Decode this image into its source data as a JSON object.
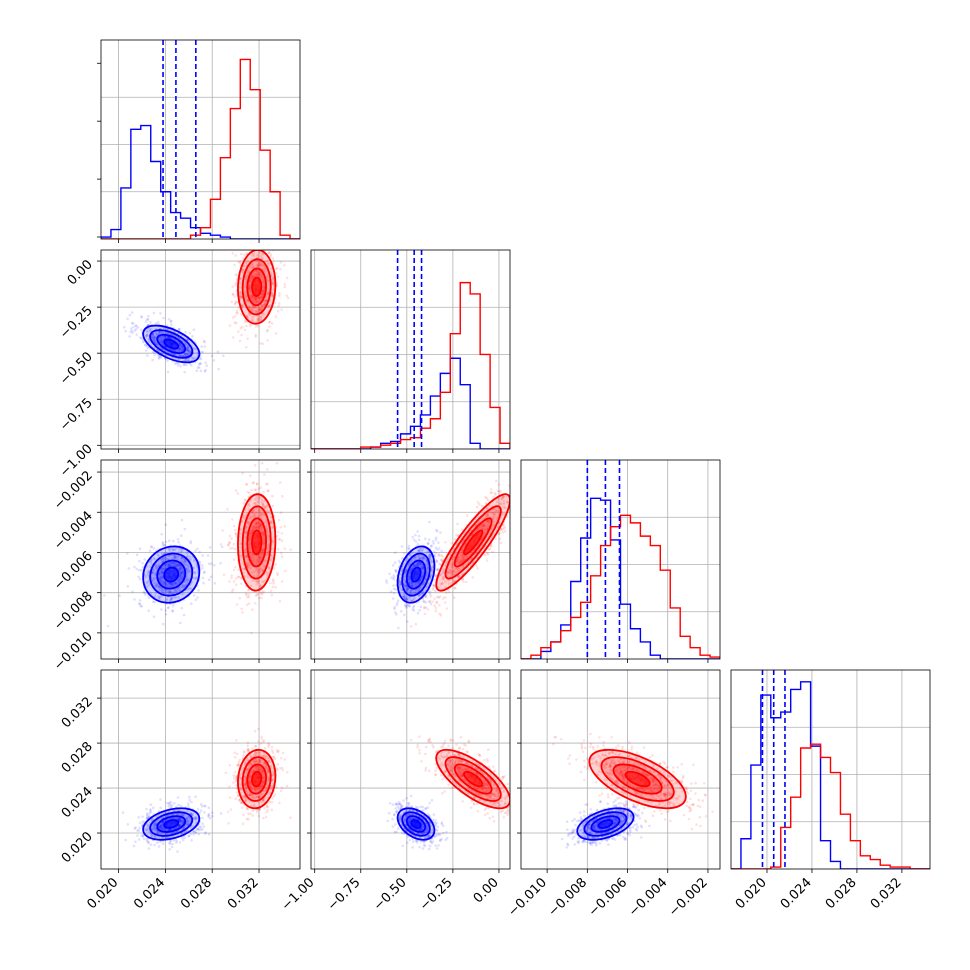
{
  "colors": {
    "blue": "#0000ff",
    "red": "#ff0000",
    "grid": "#b0b0b0",
    "axis": "#000000"
  },
  "chart_data": {
    "type": "corner",
    "grid": true,
    "parameters": [
      {
        "range": [
          0.0185,
          0.0355
        ],
        "ticks": [
          0.02,
          0.024,
          0.028,
          0.032
        ],
        "tick_labels": [
          "0.020",
          "0.024",
          "0.028",
          "0.032"
        ]
      },
      {
        "range": [
          -1.02,
          0.06
        ],
        "ticks": [
          -1.0,
          -0.75,
          -0.5,
          -0.25,
          0.0
        ],
        "tick_labels": [
          "−1.00",
          "−0.75",
          "−0.50",
          "−0.25",
          "0.00"
        ]
      },
      {
        "range": [
          -0.0113,
          -0.0014
        ],
        "ticks": [
          -0.01,
          -0.008,
          -0.006,
          -0.004,
          -0.002
        ],
        "tick_labels": [
          "−0.010",
          "−0.008",
          "−0.006",
          "−0.004",
          "−0.002"
        ]
      },
      {
        "range": [
          0.0168,
          0.0345
        ],
        "ticks": [
          0.02,
          0.024,
          0.028,
          0.032
        ],
        "tick_labels": [
          "0.020",
          "0.024",
          "0.028",
          "0.032"
        ]
      }
    ],
    "series": [
      {
        "color": "#0000ff",
        "means": [
          0.0245,
          -0.45,
          -0.0071,
          0.0208
        ],
        "sds": [
          0.0012,
          0.05,
          0.0007,
          0.0007
        ],
        "quantiles": [
          [
            0.0238,
            0.0249,
            0.0266
          ],
          [
            -0.55,
            -0.46,
            -0.42
          ],
          [
            -0.008,
            -0.0071,
            -0.0064
          ],
          [
            0.0196,
            0.0206,
            0.0216
          ]
        ],
        "hist": [
          [
            0.01,
            0.05,
            0.27,
            0.58,
            0.6,
            0.41,
            0.25,
            0.14,
            0.11,
            0.06,
            0.03,
            0.02,
            0.01,
            0.0,
            0.0,
            0.0,
            0.0,
            0.0,
            0.0,
            0.0
          ],
          [
            0.0,
            0.0,
            0.0,
            0.0,
            0.0,
            0.0,
            0.01,
            0.03,
            0.04,
            0.08,
            0.12,
            0.18,
            0.28,
            0.4,
            0.48,
            0.34,
            0.03,
            0.0,
            0.0,
            0.0
          ],
          [
            0.0,
            0.0,
            0.04,
            0.09,
            0.18,
            0.41,
            0.64,
            0.85,
            0.84,
            0.63,
            0.29,
            0.16,
            0.09,
            0.02,
            0.0,
            0.0,
            0.0,
            0.0,
            0.0,
            0.0
          ],
          [
            0.0,
            0.16,
            0.55,
            0.92,
            0.8,
            0.83,
            0.95,
            0.99,
            0.65,
            0.15,
            0.04,
            0.0,
            0.0,
            0.0,
            0.0,
            0.0,
            0.0,
            0.0,
            0.0,
            0.0
          ]
        ]
      },
      {
        "color": "#ff0000",
        "means": [
          0.0318,
          -0.14,
          -0.0055,
          0.0248
        ],
        "sds": [
          0.0008,
          0.1,
          0.0012,
          0.0013
        ],
        "hist": [
          [
            0.0,
            0.0,
            0.0,
            0.0,
            0.0,
            0.0,
            0.0,
            0.0,
            0.0,
            0.02,
            0.06,
            0.21,
            0.43,
            0.69,
            0.95,
            0.79,
            0.47,
            0.25,
            0.02,
            0.0
          ],
          [
            0.0,
            0.0,
            0.0,
            0.0,
            0.0,
            0.01,
            0.01,
            0.02,
            0.03,
            0.05,
            0.06,
            0.11,
            0.16,
            0.3,
            0.61,
            0.88,
            0.82,
            0.5,
            0.22,
            0.03
          ],
          [
            0.0,
            0.02,
            0.06,
            0.09,
            0.15,
            0.22,
            0.3,
            0.44,
            0.6,
            0.7,
            0.76,
            0.72,
            0.65,
            0.6,
            0.47,
            0.27,
            0.12,
            0.06,
            0.02,
            0.01
          ],
          [
            0.0,
            0.0,
            0.0,
            0.0,
            0.01,
            0.22,
            0.38,
            0.64,
            0.66,
            0.59,
            0.51,
            0.29,
            0.15,
            0.07,
            0.05,
            0.02,
            0.01,
            0.01,
            0.0,
            0.0
          ]
        ]
      }
    ]
  }
}
